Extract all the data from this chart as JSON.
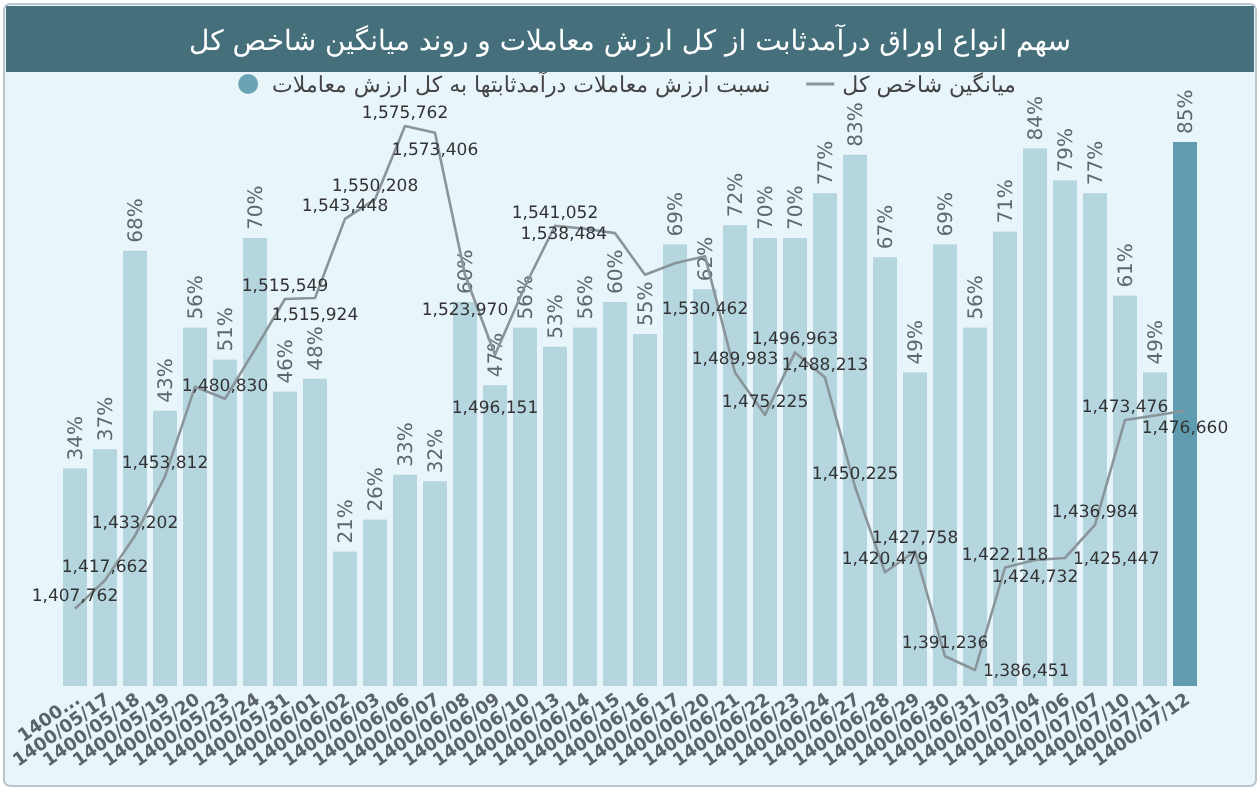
{
  "chart_data": {
    "type": "bar",
    "title": "سهم انواع اوراق درآمدثابت از کل ارزش معاملات و روند میانگین شاخص کل",
    "categories": [
      "1400...",
      "1400/05/17",
      "1400/05/18",
      "1400/05/19",
      "1400/05/20",
      "1400/05/23",
      "1400/05/24",
      "1400/05/31",
      "1400/06/01",
      "1400/06/02",
      "1400/06/03",
      "1400/06/06",
      "1400/06/07",
      "1400/06/08",
      "1400/06/09",
      "1400/06/10",
      "1400/06/13",
      "1400/06/14",
      "1400/06/15",
      "1400/06/16",
      "1400/06/17",
      "1400/06/20",
      "1400/06/21",
      "1400/06/22",
      "1400/06/23",
      "1400/06/24",
      "1400/06/27",
      "1400/06/28",
      "1400/06/29",
      "1400/06/30",
      "1400/06/31",
      "1400/07/03",
      "1400/07/04",
      "1400/07/06",
      "1400/07/07",
      "1400/07/10",
      "1400/07/11",
      "1400/07/12"
    ],
    "tick_labels": "x",
    "legend": "top",
    "series": [
      {
        "name": "نسبت ارزش معاملات درآمدثابتها به کل ارزش معاملات",
        "color": "#6aa3b4",
        "colors": [
          "#b5d5df",
          "#b5d5df",
          "#b5d5df",
          "#b5d5df",
          "#b5d5df",
          "#b5d5df",
          "#b5d5df",
          "#b5d5df",
          "#b5d5df",
          "#b5d5df",
          "#b5d5df",
          "#b5d5df",
          "#b5d5df",
          "#b5d5df",
          "#b5d5df",
          "#b5d5df",
          "#b5d5df",
          "#b5d5df",
          "#b5d5df",
          "#b5d5df",
          "#b5d5df",
          "#b5d5df",
          "#b5d5df",
          "#b5d5df",
          "#b5d5df",
          "#b5d5df",
          "#b5d5df",
          "#b5d5df",
          "#b5d5df",
          "#b5d5df",
          "#b5d5df",
          "#b5d5df",
          "#b5d5df",
          "#b5d5df",
          "#b5d5df",
          "#b5d5df",
          "#b5d5df",
          "#5f9cb0"
        ],
        "values": [
          34,
          37,
          68,
          43,
          56,
          51,
          70,
          46,
          48,
          21,
          26,
          33,
          32,
          60,
          47,
          56,
          53,
          56,
          60,
          55,
          69,
          62,
          72,
          70,
          70,
          77,
          83,
          67,
          49,
          69,
          56,
          71,
          84,
          79,
          77,
          61,
          49,
          85
        ],
        "value_labels": [
          "34%",
          "37%",
          "68%",
          "43%",
          "56%",
          "51%",
          "70%",
          "46%",
          "48%",
          "21%",
          "26%",
          "33%",
          "32%",
          "60%",
          "47%",
          "56%",
          "53%",
          "56%",
          "60%",
          "55%",
          "69%",
          "62%",
          "72%",
          "70%",
          "70%",
          "77%",
          "83%",
          "67%",
          "49%",
          "69%",
          "56%",
          "71%",
          "84%",
          "79%",
          "77%",
          "61%",
          "49%",
          "85%"
        ]
      },
      {
        "name": "میانگین شاخص کل",
        "type": "line",
        "axis": "y2",
        "color": "#8a959a",
        "values": [
          1407762,
          1417662,
          1433202,
          1453812,
          1485000,
          1480830,
          1498000,
          1515549,
          1515924,
          1543448,
          1550208,
          1575762,
          1573406,
          1523970,
          1496151,
          1520000,
          1541052,
          1540000,
          1538484,
          1524000,
          1528000,
          1530462,
          1489983,
          1475225,
          1496963,
          1488213,
          1450225,
          1420479,
          1427758,
          1391236,
          1386451,
          1422118,
          1424732,
          1425447,
          1436984,
          1473476,
          1475000,
          1476660
        ],
        "value_labels": [
          "1,407,762",
          "1,417,662",
          "1,433,202",
          "1,453,812",
          null,
          "1,480,830",
          null,
          "1,515,549",
          "1,515,924",
          "1,543,448",
          "1,550,208",
          "1,575,762",
          "1,573,406",
          "1,523,970",
          "1,496,151",
          null,
          "1,541,052",
          null,
          "1,538,484",
          null,
          null,
          "1,530,462",
          "1,489,983",
          "1,475,225",
          "1,496,963",
          "1,488,213",
          "1,450,225",
          "1,420,479",
          "1,427,758",
          "1,391,236",
          "1,386,451",
          "1,422,118",
          "1,424,732",
          "1,425,447",
          "1,436,984",
          "1,473,476",
          null,
          "1,476,660"
        ]
      }
    ]
  }
}
